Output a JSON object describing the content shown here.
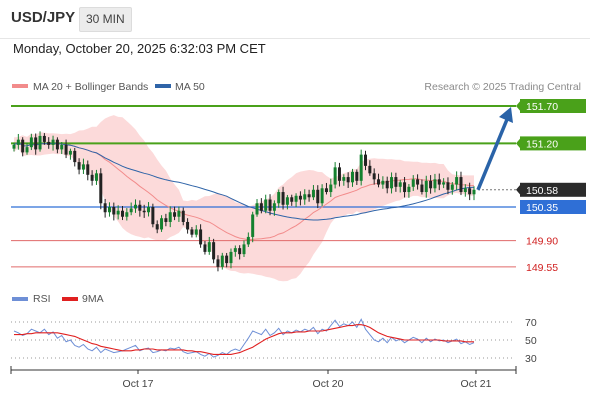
{
  "header": {
    "symbol": "USD/JPY",
    "timeframe": "30 MIN"
  },
  "timestamp": "Monday, October 20, 2025 6:32:03 PM CET",
  "credit": "Research © 2025 Trading Central",
  "colors": {
    "up": "#14812f",
    "down": "#222222",
    "ma20": "#f28b8b",
    "ma50": "#2f64a8",
    "band": "#fbd3d3",
    "target": "#4aa11a",
    "pivot": "#2f6fd6",
    "support": "#e06a6a",
    "arrow": "#2a63a8",
    "rsi": "#6e8fd6",
    "rsi_ma": "#e02020"
  },
  "chart_data": [
    {
      "type": "candlestick",
      "legend": [
        "MA 20 + Bollinger Bands",
        "MA 50"
      ],
      "ylim": [
        149.35,
        151.85
      ],
      "x_labels": [
        "Oct 17",
        "Oct 20",
        "Oct 21"
      ],
      "levels": [
        {
          "name": "target-2",
          "value": 151.7,
          "label": "151.70",
          "style": "target"
        },
        {
          "name": "target-1",
          "value": 151.2,
          "label": "151.20",
          "style": "target"
        },
        {
          "name": "last",
          "value": 150.58,
          "label": "150.58",
          "style": "last"
        },
        {
          "name": "pivot",
          "value": 150.35,
          "label": "150.35",
          "style": "pivot"
        },
        {
          "name": "support-1",
          "value": 149.9,
          "label": "149.90",
          "style": "support"
        },
        {
          "name": "support-2",
          "value": 149.55,
          "label": "149.55",
          "style": "support"
        }
      ],
      "arrow": {
        "from": 150.58,
        "to": 151.7
      },
      "closes": [
        151.18,
        151.25,
        151.08,
        151.15,
        151.28,
        151.12,
        151.3,
        151.22,
        151.18,
        151.25,
        151.12,
        151.18,
        151.05,
        151.1,
        150.95,
        150.85,
        150.92,
        150.78,
        150.7,
        150.8,
        150.4,
        150.28,
        150.35,
        150.25,
        150.3,
        150.22,
        150.28,
        150.33,
        150.38,
        150.3,
        150.28,
        150.35,
        150.12,
        150.05,
        150.2,
        150.15,
        150.28,
        150.22,
        150.3,
        150.15,
        150.05,
        149.98,
        150.05,
        149.85,
        149.75,
        149.88,
        149.65,
        149.55,
        149.7,
        149.6,
        149.75,
        149.8,
        149.72,
        149.85,
        149.95,
        150.25,
        150.4,
        150.3,
        150.45,
        150.3,
        150.4,
        150.55,
        150.38,
        150.48,
        150.42,
        150.5,
        150.45,
        150.52,
        150.48,
        150.58,
        150.4,
        150.6,
        150.55,
        150.65,
        150.88,
        150.7,
        150.75,
        150.68,
        150.82,
        150.7,
        151.05,
        150.9,
        150.8,
        150.72,
        150.65,
        150.7,
        150.6,
        150.75,
        150.62,
        150.68,
        150.55,
        150.62,
        150.72,
        150.65,
        150.55,
        150.7,
        150.6,
        150.72,
        150.65,
        150.68,
        150.58,
        150.65,
        150.75,
        150.55,
        150.6,
        150.52,
        150.58
      ]
    },
    {
      "type": "line",
      "legend": [
        "RSI",
        "9MA"
      ],
      "ylim": [
        26,
        78
      ],
      "y_ticks": [
        70,
        50,
        30
      ],
      "series": [
        {
          "name": "RSI",
          "values": [
            60,
            58,
            55,
            57,
            62,
            60,
            58,
            62,
            56,
            59,
            52,
            55,
            48,
            50,
            44,
            42,
            45,
            40,
            38,
            42,
            36,
            40,
            38,
            36,
            37,
            38,
            40,
            42,
            44,
            38,
            40,
            41,
            36,
            37,
            39,
            38,
            41,
            40,
            42,
            37,
            35,
            36,
            37,
            34,
            32,
            35,
            31,
            33,
            36,
            34,
            38,
            40,
            38,
            45,
            52,
            60,
            58,
            56,
            62,
            55,
            58,
            63,
            56,
            60,
            58,
            61,
            59,
            62,
            60,
            64,
            57,
            62,
            60,
            66,
            72,
            65,
            68,
            66,
            70,
            64,
            73,
            62,
            56,
            50,
            48,
            52,
            47,
            53,
            49,
            51,
            47,
            50,
            53,
            51,
            47,
            52,
            48,
            51,
            49,
            50,
            47,
            49,
            51,
            46,
            48,
            45,
            47
          ]
        },
        {
          "name": "9MA",
          "values": [
            56,
            56,
            56,
            57,
            57,
            58,
            58,
            58,
            58,
            58,
            58,
            57,
            56,
            55,
            54,
            52,
            50,
            48,
            46,
            45,
            43,
            42,
            41,
            40,
            39,
            38,
            38,
            38,
            39,
            39,
            40,
            40,
            40,
            39,
            39,
            39,
            39,
            39,
            39,
            39,
            38,
            38,
            37,
            37,
            36,
            35,
            34,
            34,
            34,
            34,
            34,
            35,
            36,
            38,
            40,
            42,
            45,
            48,
            51,
            53,
            55,
            57,
            58,
            58,
            58,
            59,
            59,
            59,
            60,
            60,
            60,
            60,
            61,
            62,
            63,
            64,
            65,
            66,
            66,
            67,
            67,
            66,
            64,
            61,
            58,
            56,
            54,
            53,
            52,
            51,
            50,
            50,
            50,
            50,
            50,
            50,
            50,
            50,
            50,
            49,
            49,
            49,
            49,
            49,
            48,
            48,
            48
          ]
        }
      ]
    }
  ]
}
